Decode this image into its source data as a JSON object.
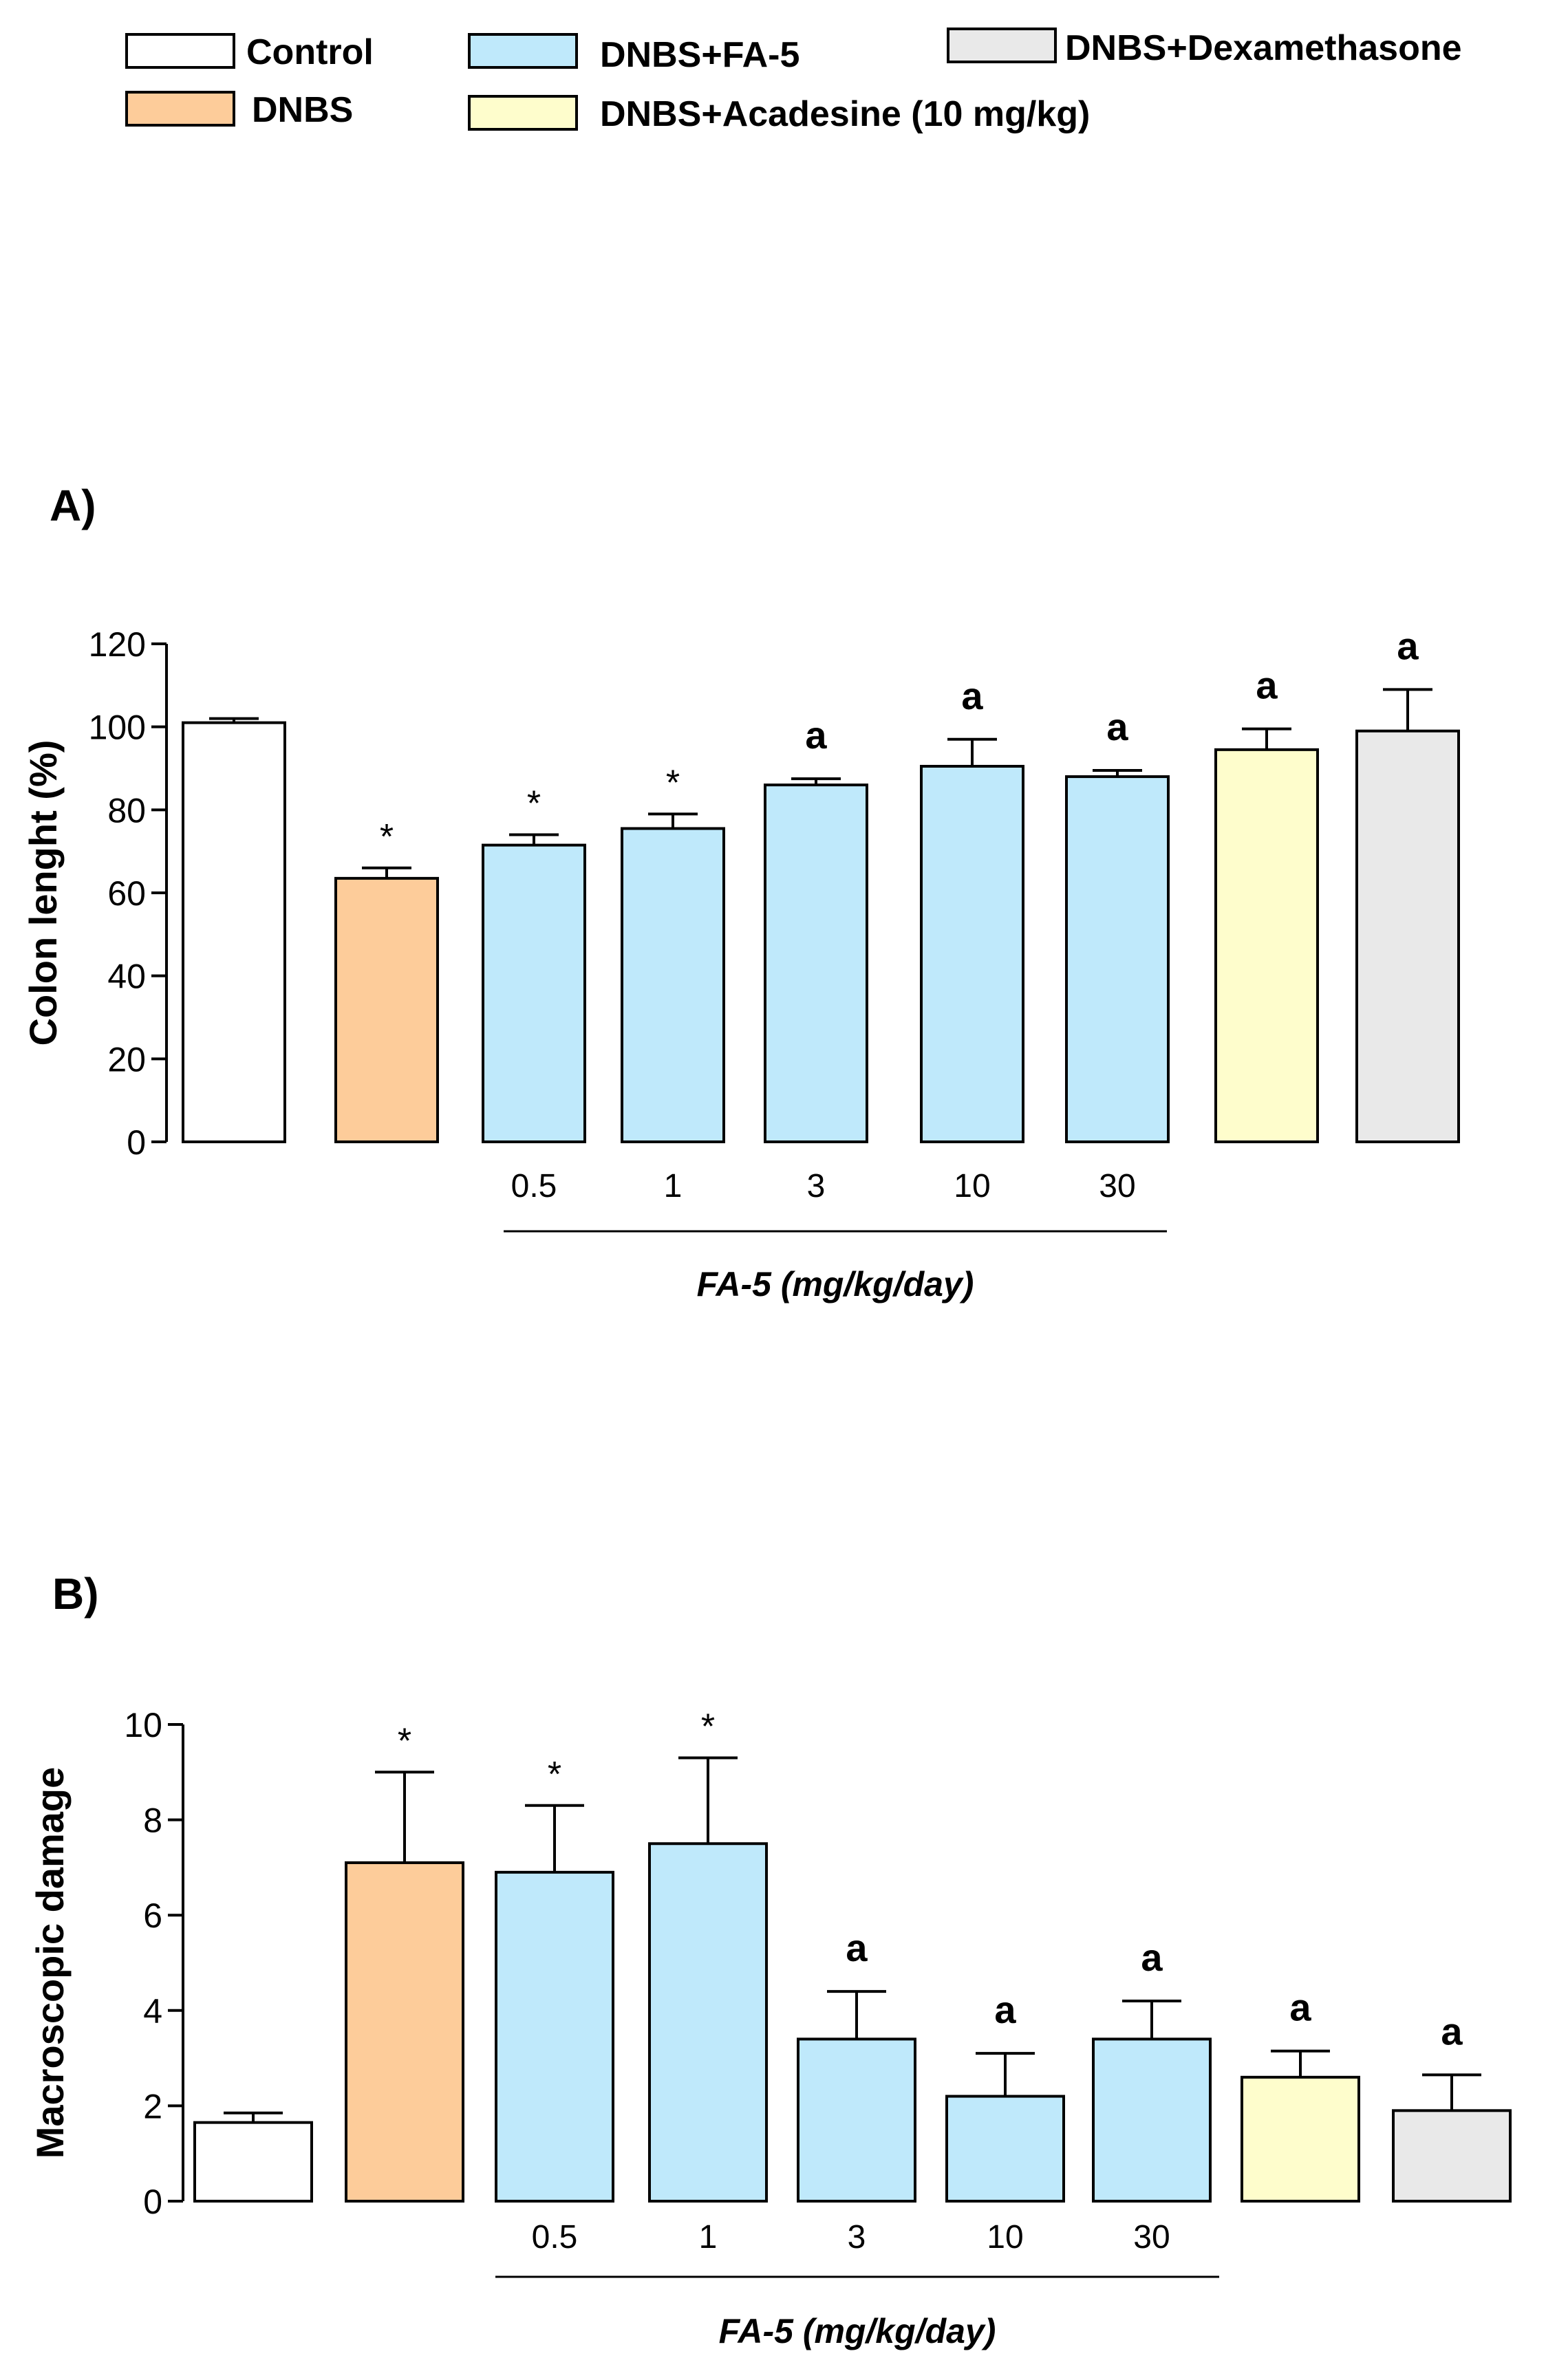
{
  "legend": {
    "items": [
      {
        "label": "Control",
        "color": "#ffffff"
      },
      {
        "label": "DNBS",
        "color": "#fdcc9a"
      },
      {
        "label": "DNBS+FA-5",
        "color": "#bfe9fb"
      },
      {
        "label": "DNBS+Acadesine (10 mg/kg)",
        "color": "#fefdcc"
      },
      {
        "label": "DNBS+Dexamethasone",
        "color": "#e9e9e9"
      }
    ]
  },
  "chart_data": [
    {
      "panel": "A)",
      "type": "bar",
      "ylabel": "Colon lenght (%)",
      "ylim": [
        0,
        120
      ],
      "yticks": [
        "0",
        "20",
        "40",
        "60",
        "80",
        "100",
        "120"
      ],
      "categories": [
        "",
        "",
        "0.5",
        "1",
        "3",
        "10",
        "30",
        "",
        ""
      ],
      "groups": [
        "Control",
        "DNBS",
        "DNBS+FA-5",
        "DNBS+FA-5",
        "DNBS+FA-5",
        "DNBS+FA-5",
        "DNBS+FA-5",
        "DNBS+Acadesine (10 mg/kg)",
        "DNBS+Dexamethasone"
      ],
      "values": [
        101,
        63.5,
        71.5,
        75.5,
        86,
        90.5,
        88,
        94.5,
        99
      ],
      "errors": [
        1,
        2.5,
        2.5,
        3.5,
        1.5,
        6.5,
        1.5,
        5,
        10
      ],
      "annotations": [
        "",
        "*",
        "*",
        "*",
        "a",
        "a",
        "a",
        "a",
        "a"
      ],
      "xlabel": "FA-5 (mg/kg/day)"
    },
    {
      "panel": "B)",
      "type": "bar",
      "ylabel": "Macroscopic damage",
      "ylim": [
        0,
        10
      ],
      "yticks": [
        "0",
        "2",
        "4",
        "6",
        "8",
        "10"
      ],
      "categories": [
        "",
        "",
        "0.5",
        "1",
        "3",
        "10",
        "30",
        "",
        ""
      ],
      "groups": [
        "Control",
        "DNBS",
        "DNBS+FA-5",
        "DNBS+FA-5",
        "DNBS+FA-5",
        "DNBS+FA-5",
        "DNBS+FA-5",
        "DNBS+Acadesine (10 mg/kg)",
        "DNBS+Dexamethasone"
      ],
      "values": [
        1.65,
        7.1,
        6.9,
        7.5,
        3.4,
        2.2,
        3.4,
        2.6,
        1.9
      ],
      "errors": [
        0.2,
        1.9,
        1.4,
        1.8,
        1.0,
        0.9,
        0.8,
        0.55,
        0.75
      ],
      "annotations": [
        "",
        "*",
        "*",
        "*",
        "a",
        "a",
        "a",
        "a",
        "a"
      ],
      "xlabel": "FA-5 (mg/kg/day)"
    }
  ]
}
